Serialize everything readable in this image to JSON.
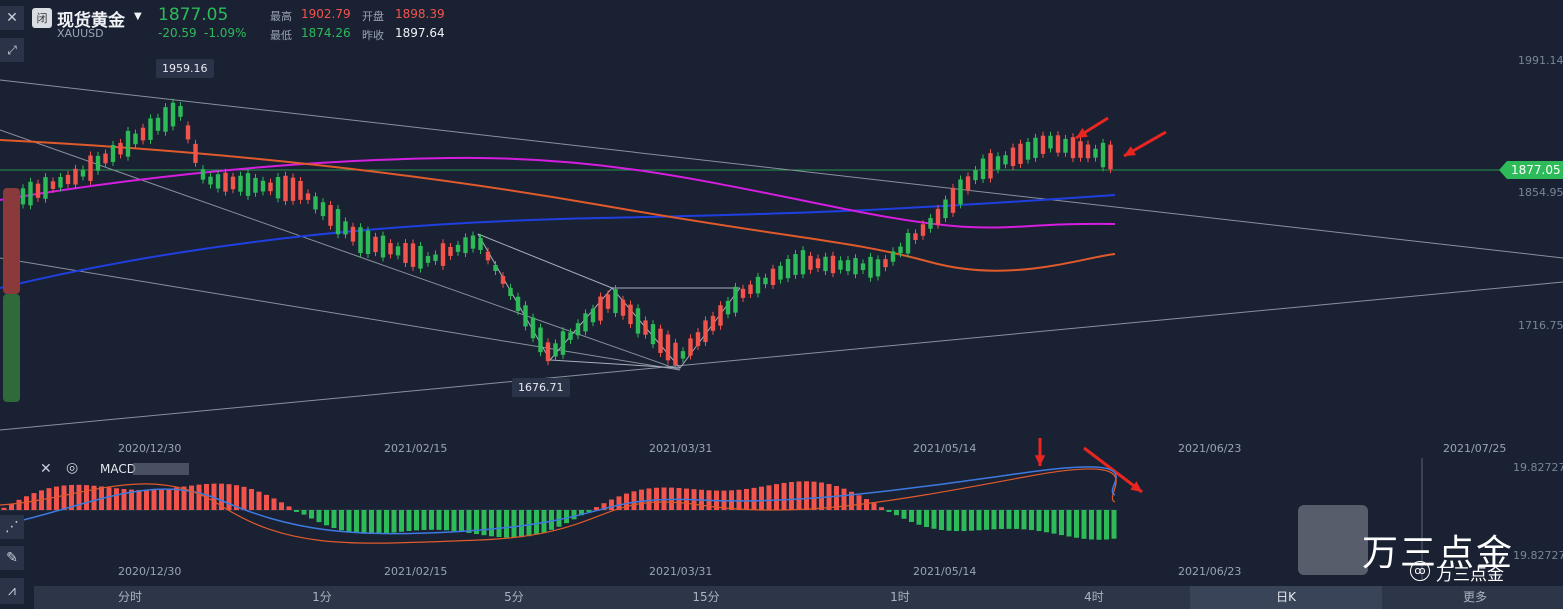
{
  "header": {
    "market_status": "闭",
    "title": "现货黄金",
    "symbol": "XAUUSD",
    "last_price": "1877.05",
    "change": "-20.59",
    "change_pct": "-1.09%",
    "high_label": "最高",
    "high": "1902.79",
    "open_label": "开盘",
    "open": "1898.39",
    "low_label": "最低",
    "low": "1874.26",
    "prev_close_label": "昨收",
    "prev_close": "1897.64"
  },
  "chart": {
    "price_axis": [
      "1991.14",
      "1854.95",
      "1716.75"
    ],
    "last_price_badge": "1877.05",
    "high_marker": "1959.16",
    "low_marker": "1676.71",
    "dates": [
      "2020/12/30",
      "2021/02/15",
      "2021/03/31",
      "2021/05/14",
      "2021/06/23",
      "2021/07/25"
    ],
    "colors": {
      "up": "#f2544b",
      "down": "#2dbb59",
      "ma_blue": "#1f3fe0",
      "ma_magenta": "#d51ee0",
      "ma_orange": "#e05a2c"
    }
  },
  "macd": {
    "label": "MACD",
    "axis": [
      "19.82727",
      "19.82727"
    ],
    "dates": [
      "2020/12/30",
      "2021/02/15",
      "2021/03/31",
      "2021/05/14",
      "2021/06/23"
    ]
  },
  "timeframes": [
    "分时",
    "1分",
    "5分",
    "15分",
    "1时",
    "4时",
    "日K",
    "更多"
  ],
  "active_timeframe": "日K",
  "watermark": {
    "main": "万三点金",
    "sub": "万三点金"
  },
  "icons": [
    "close-icon",
    "draw-tool-icon",
    "settings-icon",
    "pencil-icon",
    "indicator-icon"
  ]
}
